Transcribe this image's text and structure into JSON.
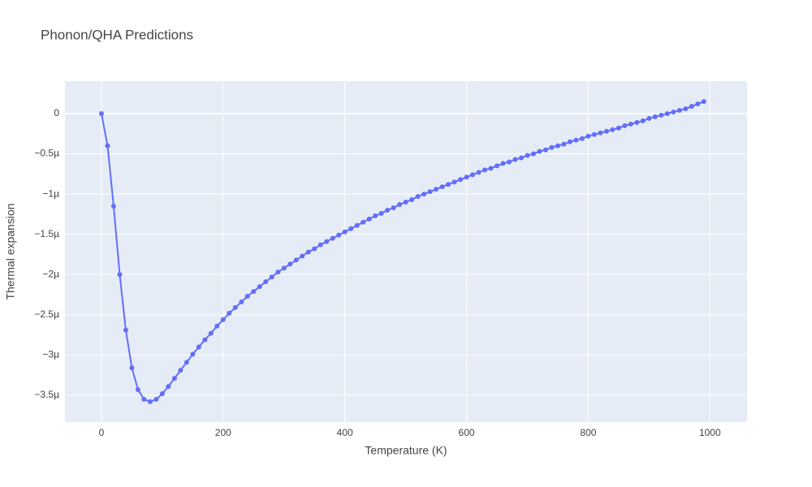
{
  "chart_data": {
    "type": "line",
    "title": "Phonon/QHA Predictions",
    "xlabel": "Temperature (K)",
    "ylabel": "Thermal expansion",
    "x": [
      0,
      10,
      20,
      30,
      40,
      50,
      60,
      70,
      80,
      90,
      100,
      110,
      120,
      130,
      140,
      150,
      160,
      170,
      180,
      190,
      200,
      210,
      220,
      230,
      240,
      250,
      260,
      270,
      280,
      290,
      300,
      310,
      320,
      330,
      340,
      350,
      360,
      370,
      380,
      390,
      400,
      410,
      420,
      430,
      440,
      450,
      460,
      470,
      480,
      490,
      500,
      510,
      520,
      530,
      540,
      550,
      560,
      570,
      580,
      590,
      600,
      610,
      620,
      630,
      640,
      650,
      660,
      670,
      680,
      690,
      700,
      710,
      720,
      730,
      740,
      750,
      760,
      770,
      780,
      790,
      800,
      810,
      820,
      830,
      840,
      850,
      860,
      870,
      880,
      890,
      900,
      910,
      920,
      930,
      940,
      950,
      960,
      970,
      980,
      990
    ],
    "series": [
      {
        "name": "Thermal expansion",
        "color": "#636efa",
        "values": [
          0,
          -4e-07,
          -1.15e-06,
          -2e-06,
          -2.69e-06,
          -3.16e-06,
          -3.43e-06,
          -3.55e-06,
          -3.58e-06,
          -3.55e-06,
          -3.48e-06,
          -3.39e-06,
          -3.29e-06,
          -3.19e-06,
          -3.09e-06,
          -2.99e-06,
          -2.9e-06,
          -2.81e-06,
          -2.73e-06,
          -2.64e-06,
          -2.56e-06,
          -2.48e-06,
          -2.41e-06,
          -2.34e-06,
          -2.27e-06,
          -2.21e-06,
          -2.15e-06,
          -2.09e-06,
          -2.03e-06,
          -1.97e-06,
          -1.92e-06,
          -1.87e-06,
          -1.82e-06,
          -1.77e-06,
          -1.72e-06,
          -1.68e-06,
          -1.63e-06,
          -1.59e-06,
          -1.55e-06,
          -1.51e-06,
          -1.47e-06,
          -1.43e-06,
          -1.39e-06,
          -1.35e-06,
          -1.31e-06,
          -1.27e-06,
          -1.24e-06,
          -1.2e-06,
          -1.17e-06,
          -1.13e-06,
          -1.1e-06,
          -1.07e-06,
          -1.03e-06,
          -1e-06,
          -9.7e-07,
          -9.4e-07,
          -9.1e-07,
          -8.8e-07,
          -8.5e-07,
          -8.2e-07,
          -7.9e-07,
          -7.6e-07,
          -7.3e-07,
          -7e-07,
          -6.8e-07,
          -6.5e-07,
          -6.2e-07,
          -6e-07,
          -5.7e-07,
          -5.5e-07,
          -5.2e-07,
          -5e-07,
          -4.7e-07,
          -4.5e-07,
          -4.2e-07,
          -4e-07,
          -3.8e-07,
          -3.5e-07,
          -3.3e-07,
          -3.1e-07,
          -2.8e-07,
          -2.6e-07,
          -2.4e-07,
          -2.2e-07,
          -2e-07,
          -1.8e-07,
          -1.5e-07,
          -1.3e-07,
          -1.1e-07,
          -9e-08,
          -6e-08,
          -4e-08,
          -2e-08,
          0,
          2e-08,
          4e-08,
          6e-08,
          9e-08,
          1.2e-07,
          1.5e-07
        ]
      }
    ],
    "xlim": [
      -60,
      1061
    ],
    "xticks": [
      0,
      200,
      400,
      600,
      800,
      1000
    ],
    "ylim": [
      -3.833e-06,
      4.03e-07
    ],
    "yticks": [
      0,
      {
        "value": -5e-07,
        "label": "−0.5µ"
      },
      {
        "value": -1e-06,
        "label": "−1µ"
      },
      {
        "value": -1.5e-06,
        "label": "−1.5µ"
      },
      {
        "value": -2e-06,
        "label": "−2µ"
      },
      {
        "value": -2.5e-06,
        "label": "−2.5µ"
      },
      {
        "value": -3e-06,
        "label": "−3µ"
      },
      {
        "value": -3.5e-06,
        "label": "−3.5µ"
      }
    ],
    "grid": true
  }
}
